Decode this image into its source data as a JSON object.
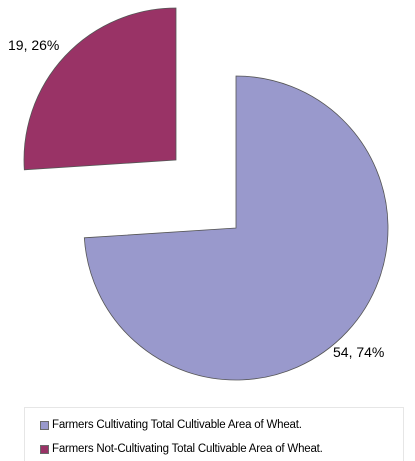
{
  "chart_data": {
    "type": "pie",
    "title": "",
    "exploded": true,
    "legend_position": "bottom",
    "slices": [
      {
        "name": "Farmers Cultivating Total Cultivable Area of Wheat.",
        "value": 54,
        "percent": 74,
        "label": "54, 74%",
        "color": "#9999cc"
      },
      {
        "name": "Farmers Not-Cultivating Total Cultivable Area of Wheat.",
        "value": 19,
        "percent": 26,
        "label": "19, 26%",
        "color": "#993366"
      }
    ]
  },
  "legend": {
    "items": [
      {
        "label": "Farmers Cultivating Total Cultivable Area of Wheat.",
        "color": "#9999cc"
      },
      {
        "label": "Farmers Not-Cultivating Total Cultivable Area of Wheat.",
        "color": "#993366"
      }
    ]
  }
}
